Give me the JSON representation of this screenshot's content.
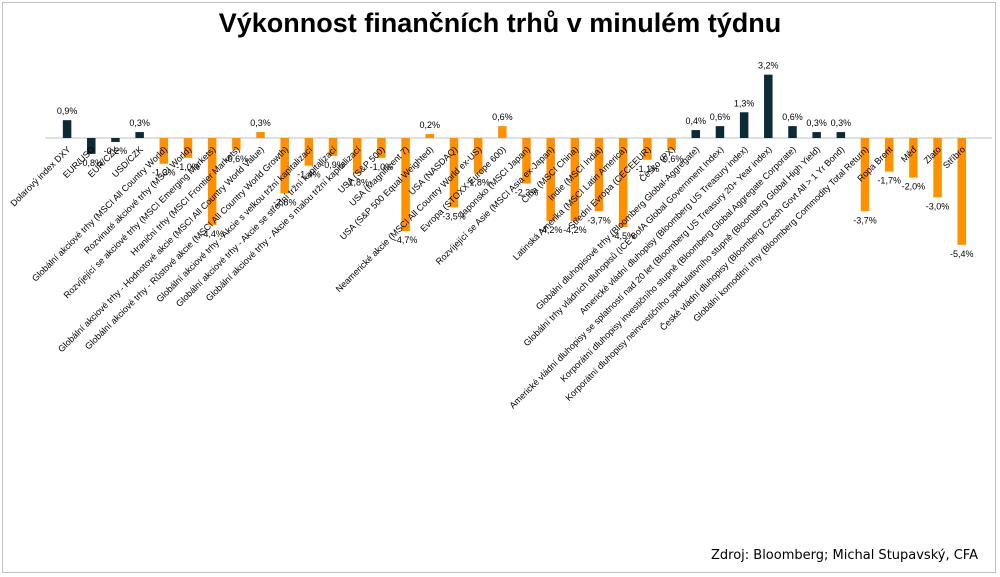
{
  "title": "Výkonnost finančních trhů v minulém týdnu",
  "source": "Zdroj: Bloomberg; Michal Stupavský, CFA",
  "colors": {
    "dark": "#0d2b36",
    "orange": "#ff9100",
    "axis": "#bfbfbf"
  },
  "chart_data": {
    "type": "bar",
    "title": "Výkonnost finančních trhů v minulém týdnu",
    "xlabel": "",
    "ylabel": "",
    "grid": false,
    "ylim": [
      -5.4,
      3.2
    ],
    "categories": [
      "Dolarový index DXY",
      "EUR/USD",
      "EUR/CZK",
      "USD/CZK",
      "Globální akciové trhy (MSCI All Country World)",
      "Rozvinuté akciové trhy (MSCI World)",
      "Rozvíjející se akciové trhy (MSCI Emerging Markets)",
      "Hraniční trhy (MSCI Frontier Markets)",
      "Globální akciové trhy - Hodnotové akcie (MSCI All Country World Value)",
      "Globální akciové trhy - Růstové akcie (MSCI All Country World Growth)",
      "Globální akciové trhy - Akcie s velkou tržní kapitalizací",
      "Globální akciové trhy - Akcie se střední tržní kapitalizací",
      "Globální akciové trhy - Akcie s malou tržní kapitalizací",
      "USA (S&P 500)",
      "USA (Magnificent 7)",
      "USA (S&P 500 Equal Weighted)",
      "USA (NASDAQ)",
      "Neamerické akcie (MSCI All Country World ex-US)",
      "Evropa (STOXX Europe 600)",
      "Japonsko (MSCI Japan)",
      "Rozvíjející se Asie (MSCI Asia ex-Japan)",
      "Čína (MSCI China)",
      "Indie (MSCI India)",
      "Latinská Amerika (MSCI Latin America)",
      "Střední Evropa (CECEEUR)",
      "Česko (PX)",
      "Globální dluhopisové trhy (Bloomberg Global-Aggregate)",
      "Globální trhy vládních dluhopisů (ICE BofA Global Government Index)",
      "Americké vládní dluhopisy (Bloomberg US Treasury index)",
      "Americké vládní dluhopisy se splatností nad 20 let (Bloomberg US Treasury 20+ Year index)",
      "Korporátní dluhopisy investičního stupně (Bloomberg Global Aggregate Corporate)",
      "Korporátní dluhopisy neinvestičního spekulativního stupně (Bloomberg Global High Yield)",
      "České vládní dluhopisy (Bloomberg Czech Govt All > 1 Yr Bond)",
      "Globální komoditní trhy (Bloomberg Commodity Total Return)",
      "Ropa Brent",
      "Měď",
      "Zlato",
      "Stříbro"
    ],
    "values": [
      0.9,
      -0.8,
      -0.2,
      0.3,
      -1.3,
      -1.0,
      -4.4,
      -0.6,
      0.3,
      -2.8,
      -1.4,
      -0.9,
      -1.8,
      -1.0,
      -4.7,
      0.2,
      -3.5,
      -1.8,
      0.6,
      -2.3,
      -4.2,
      -4.2,
      -3.7,
      -4.5,
      -1.1,
      -0.6,
      0.4,
      0.6,
      1.3,
      3.2,
      0.6,
      0.3,
      0.3,
      -3.7,
      -1.7,
      -2.0,
      -3.0,
      -5.4
    ],
    "value_labels": [
      "0,9%",
      "-0,8%",
      "-0,2%",
      "0,3%",
      "-1,3%",
      "-1,0%",
      "-4,4%",
      "-0,6%",
      "0,3%",
      "-2,8%",
      "-1,4%",
      "-0,9%",
      "-1,8%",
      "-1,0%",
      "-4,7%",
      "0,2%",
      "-3,5%",
      "-1,8%",
      "0,6%",
      "-2,3%",
      "-4,2%",
      "-4,2%",
      "-3,7%",
      "-4,5%",
      "-1,1%",
      "-0,6%",
      "0,4%",
      "0,6%",
      "1,3%",
      "3,2%",
      "0,6%",
      "0,3%",
      "0,3%",
      "-3,7%",
      "-1,7%",
      "-2,0%",
      "-3,0%",
      "-5,4%"
    ],
    "bar_colors": [
      "dark",
      "dark",
      "dark",
      "dark",
      "orange",
      "orange",
      "orange",
      "orange",
      "orange",
      "orange",
      "orange",
      "orange",
      "orange",
      "orange",
      "orange",
      "orange",
      "orange",
      "orange",
      "orange",
      "orange",
      "orange",
      "orange",
      "orange",
      "orange",
      "orange",
      "orange",
      "dark",
      "dark",
      "dark",
      "dark",
      "dark",
      "dark",
      "dark",
      "orange",
      "orange",
      "orange",
      "orange",
      "orange"
    ]
  }
}
